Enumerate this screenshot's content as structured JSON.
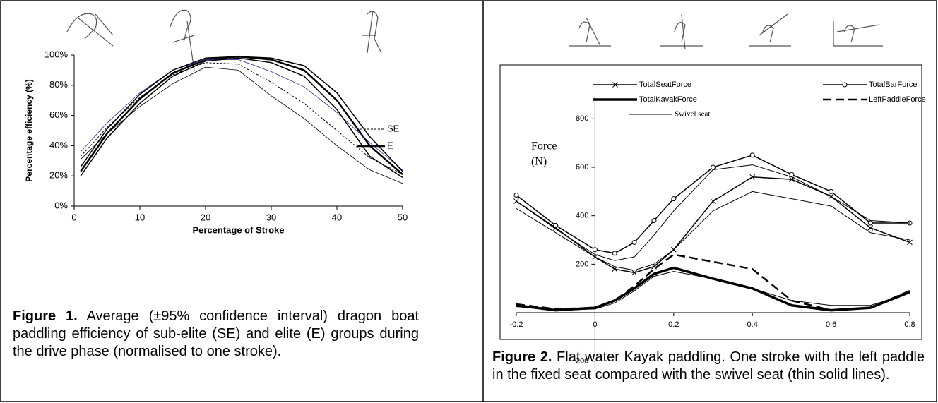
{
  "chart_data": [
    {
      "type": "line",
      "xlabel": "Percentage of Stroke",
      "ylabel": "Percentage efficiency (%)",
      "x": [
        1,
        5,
        10,
        15,
        20,
        25,
        30,
        35,
        40,
        45,
        50
      ],
      "xlim": [
        0,
        50
      ],
      "xticks": [
        0,
        10,
        20,
        30,
        40,
        50
      ],
      "ylim": [
        0,
        100
      ],
      "yticks": [
        {
          "value": 0,
          "label": "0%"
        },
        {
          "value": 20,
          "label": "20%"
        },
        {
          "value": 40,
          "label": "40%"
        },
        {
          "value": 60,
          "label": "60%"
        },
        {
          "value": 80,
          "label": "80%"
        },
        {
          "value": 100,
          "label": "100%"
        }
      ],
      "legend": "right",
      "series": [
        {
          "name": "SE",
          "color": "#000000",
          "width": 1,
          "dash": true,
          "values": [
            33,
            52,
            72,
            87,
            95,
            94,
            82,
            68,
            50,
            32,
            21
          ]
        },
        {
          "name": "E",
          "color": "#000000",
          "width": 2.5,
          "values": [
            23,
            48,
            71,
            88,
            97,
            99,
            97,
            90,
            70,
            40,
            21
          ]
        },
        {
          "color": "#000000",
          "width": 0.8,
          "values": [
            31,
            48,
            66,
            81,
            92,
            90,
            73,
            58,
            40,
            24,
            15
          ]
        },
        {
          "color": "#2a2a9c",
          "width": 0.8,
          "values": [
            36,
            55,
            75,
            90,
            97,
            97,
            89,
            79,
            62,
            42,
            24
          ]
        },
        {
          "color": "#000000",
          "width": 1.5,
          "values": [
            20,
            45,
            68,
            86,
            96,
            98,
            95,
            86,
            64,
            33,
            19
          ]
        },
        {
          "color": "#000000",
          "width": 1.5,
          "values": [
            26,
            51,
            74,
            90,
            98,
            99,
            98,
            93,
            75,
            46,
            23
          ]
        }
      ]
    },
    {
      "type": "line",
      "annotations": [
        "Force",
        "(N)"
      ],
      "x": [
        -0.2,
        -0.1,
        0,
        0.05,
        0.1,
        0.15,
        0.2,
        0.3,
        0.4,
        0.5,
        0.6,
        0.7,
        0.8
      ],
      "xlim": [
        -0.2,
        0.8
      ],
      "xticks": [
        -0.2,
        0,
        0.2,
        0.4,
        0.6,
        0.8
      ],
      "ylim": [
        -230,
        900
      ],
      "yticks": [
        -200,
        200,
        400,
        600,
        800
      ],
      "legend": "top",
      "series": [
        {
          "name": "TotalSeatForce",
          "color": "#000000",
          "width": 1.5,
          "marker": "x",
          "values": [
            460,
            350,
            230,
            180,
            165,
            190,
            260,
            460,
            560,
            550,
            480,
            350,
            290
          ]
        },
        {
          "name": "TotalBarForce",
          "color": "#000000",
          "width": 1.5,
          "marker": "o",
          "values": [
            485,
            360,
            260,
            245,
            290,
            380,
            470,
            600,
            650,
            570,
            500,
            370,
            370
          ]
        },
        {
          "name": "TotalKavakForce",
          "color": "#000000",
          "width": 3.5,
          "values": [
            30,
            10,
            20,
            50,
            100,
            160,
            185,
            140,
            100,
            30,
            10,
            20,
            85
          ]
        },
        {
          "name": "LeftPaddleForce",
          "color": "#000000",
          "width": 2.5,
          "dash": true,
          "values": [
            35,
            15,
            20,
            50,
            110,
            180,
            240,
            210,
            180,
            50,
            10,
            20,
            90
          ]
        },
        {
          "name": "Swivel seat",
          "color": "#000000",
          "width": 1,
          "values": [
            460,
            345,
            240,
            215,
            230,
            320,
            420,
            590,
            610,
            560,
            480,
            380,
            370
          ]
        },
        {
          "color": "#000000",
          "width": 1,
          "values": [
            430,
            330,
            230,
            190,
            175,
            200,
            260,
            420,
            500,
            470,
            440,
            330,
            300
          ]
        },
        {
          "color": "#000000",
          "width": 1,
          "values": [
            25,
            10,
            15,
            40,
            90,
            150,
            170,
            140,
            100,
            50,
            30,
            30,
            80
          ]
        }
      ]
    }
  ],
  "captions": [
    {
      "label": "Figure 1.",
      "text": "Average (±95% confidence interval) dragon boat paddling efficiency of sub-elite (SE) and elite (E) groups during the drive phase (normalised to one stroke)."
    },
    {
      "label": "Figure 2.",
      "text": "Flat water Kayak paddling. One stroke with the left paddle in the fixed seat compared with the swivel seat (thin solid lines)."
    }
  ]
}
